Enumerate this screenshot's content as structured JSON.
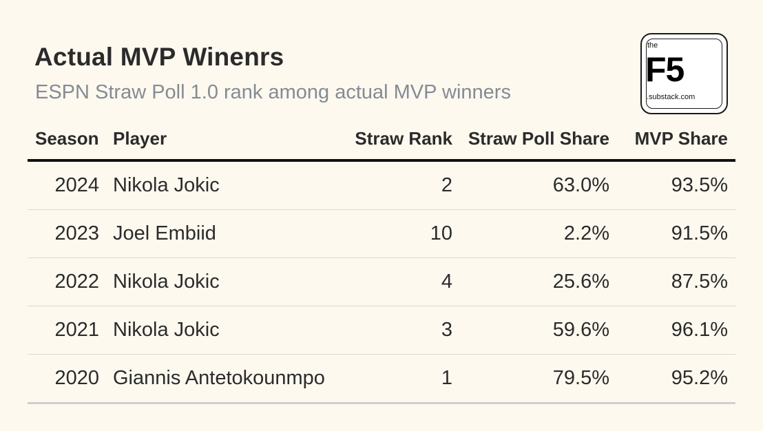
{
  "title": "Actual MVP Winenrs",
  "subtitle": "ESPN Straw Poll 1.0 rank among actual MVP winners",
  "logo": {
    "top_text": "the",
    "main_text": "F5",
    "bottom_text": ".substack.com"
  },
  "chart_data": {
    "type": "table",
    "title": "Actual MVP Winenrs",
    "subtitle": "ESPN Straw Poll 1.0 rank among actual MVP winners",
    "columns": [
      "Season",
      "Player",
      "Straw Rank",
      "Straw Poll Share",
      "MVP Share"
    ],
    "rows": [
      [
        "2024",
        "Nikola Jokic",
        "2",
        "63.0%",
        "93.5%"
      ],
      [
        "2023",
        "Joel Embiid",
        "10",
        "2.2%",
        "91.5%"
      ],
      [
        "2022",
        "Nikola Jokic",
        "4",
        "25.6%",
        "87.5%"
      ],
      [
        "2021",
        "Nikola Jokic",
        "3",
        "59.6%",
        "96.1%"
      ],
      [
        "2020",
        "Giannis Antetokounmpo",
        "1",
        "79.5%",
        "95.2%"
      ]
    ]
  },
  "colors": {
    "background": "#fdf9ef",
    "title": "#2b2b2b",
    "subtitle": "#858b94",
    "header_rule": "#111111",
    "row_rule": "#dcd9d2"
  }
}
